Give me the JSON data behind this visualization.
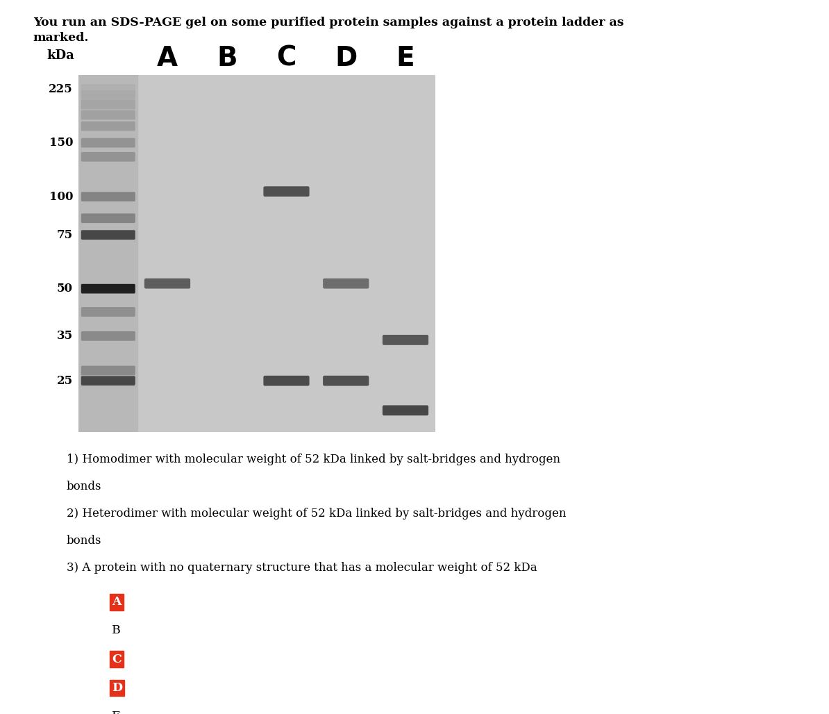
{
  "title_line1": "You run an SDS-PAGE gel on some purified protein samples against a protein ladder as",
  "title_line2": "marked.",
  "kda_labels": [
    225,
    150,
    100,
    75,
    50,
    35,
    25
  ],
  "lane_labels": [
    "A",
    "B",
    "C",
    "D",
    "E"
  ],
  "question_lines": [
    "1) Homodimer with molecular weight of 52 kDa linked by salt-bridges and hydrogen",
    "bonds",
    "2) Heterodimer with molecular weight of 52 kDa linked by salt-bridges and hydrogen",
    "bonds",
    "3) A protein with no quaternary structure that has a molecular weight of 52 kDa"
  ],
  "answer_labels": [
    "A",
    "B",
    "C",
    "D",
    "E"
  ],
  "answer_highlighted": [
    true,
    false,
    true,
    true,
    false
  ],
  "highlight_color": "#e5311a",
  "ladder_bands_kda": [
    225,
    215,
    200,
    185,
    170,
    150,
    135,
    100,
    85,
    75,
    50,
    42,
    35,
    27,
    25
  ],
  "ladder_darkness": [
    0.35,
    0.38,
    0.4,
    0.42,
    0.44,
    0.48,
    0.48,
    0.55,
    0.55,
    0.82,
    1.0,
    0.5,
    0.52,
    0.52,
    0.82
  ],
  "sample_bands": [
    {
      "lane": "A",
      "kda": 52,
      "darkness": 0.72
    },
    {
      "lane": "C",
      "kda": 104,
      "darkness": 0.78
    },
    {
      "lane": "C",
      "kda": 25,
      "darkness": 0.8
    },
    {
      "lane": "D",
      "kda": 52,
      "darkness": 0.65
    },
    {
      "lane": "D",
      "kda": 25,
      "darkness": 0.78
    },
    {
      "lane": "E",
      "kda": 34,
      "darkness": 0.75
    },
    {
      "lane": "E",
      "kda": 20,
      "darkness": 0.82
    }
  ],
  "gel_bg": "#c8c8c8",
  "ladder_bg": "#b8b8b8",
  "kda_min": 17,
  "kda_max": 250
}
